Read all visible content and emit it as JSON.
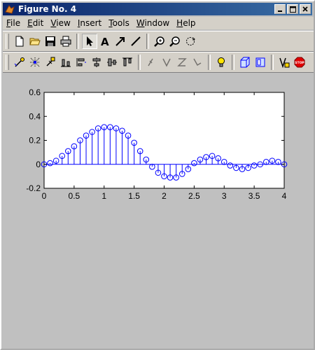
{
  "window": {
    "title": "Figure No. 4"
  },
  "menu": [
    "File",
    "Edit",
    "View",
    "Insert",
    "Tools",
    "Window",
    "Help"
  ],
  "menu_underline": [
    "F",
    "E",
    "V",
    "I",
    "T",
    "W",
    "H"
  ],
  "toolbar1": [
    "new-file",
    "open-folder",
    "save",
    "print",
    "select-arrow",
    "insert-text",
    "insert-arrow",
    "insert-line",
    "zoom-in",
    "zoom-out",
    "rotate"
  ],
  "toolbar2": [
    "data-tip",
    "brush",
    "pan",
    "link",
    "align",
    "distribute",
    "group",
    "order",
    "property",
    "light-bulb",
    "box-3d",
    "plot-browser",
    "figure-palette",
    "stop"
  ],
  "colors": {
    "stem": "#0000ff",
    "titlebar": "#0a246a"
  },
  "chart_data": {
    "type": "stem",
    "title": "",
    "xlabel": "",
    "ylabel": "",
    "xlim": [
      0,
      4
    ],
    "ylim": [
      -0.2,
      0.6
    ],
    "xticks": [
      0,
      0.5,
      1,
      1.5,
      2,
      2.5,
      3,
      3.5,
      4
    ],
    "xtick_labels": [
      "0",
      "0.5",
      "1",
      "1.5",
      "2",
      "2.5",
      "3",
      "3.5",
      "4"
    ],
    "yticks": [
      -0.2,
      0,
      0.2,
      0.4,
      0.6
    ],
    "ytick_labels": [
      "-0.2",
      "0",
      "0.2",
      "0.4",
      "0.6"
    ],
    "grid": false,
    "series": [
      {
        "x": [
          0,
          0.1,
          0.2,
          0.3,
          0.4,
          0.5,
          0.6,
          0.7,
          0.8,
          0.9,
          1.0,
          1.1,
          1.2,
          1.3,
          1.4,
          1.5,
          1.6,
          1.7,
          1.8,
          1.9,
          2.0,
          2.1,
          2.2,
          2.3,
          2.4,
          2.5,
          2.6,
          2.7,
          2.8,
          2.9,
          3.0,
          3.1,
          3.2,
          3.3,
          3.4,
          3.5,
          3.6,
          3.7,
          3.8,
          3.9,
          4.0
        ],
        "y": [
          0,
          0.01,
          0.03,
          0.07,
          0.11,
          0.15,
          0.2,
          0.24,
          0.27,
          0.3,
          0.31,
          0.31,
          0.3,
          0.28,
          0.24,
          0.18,
          0.11,
          0.04,
          -0.02,
          -0.07,
          -0.1,
          -0.11,
          -0.11,
          -0.08,
          -0.04,
          0.01,
          0.04,
          0.06,
          0.07,
          0.05,
          0.02,
          -0.01,
          -0.03,
          -0.04,
          -0.03,
          -0.01,
          0.0,
          0.02,
          0.03,
          0.02,
          0.0
        ]
      }
    ]
  }
}
